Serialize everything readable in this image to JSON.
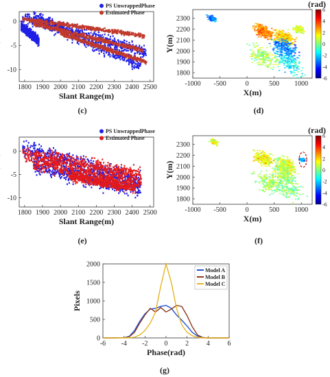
{
  "chart_data": [
    {
      "id": "c",
      "type": "scatter",
      "caption": "(c)",
      "xlabel": "Slant Range(m)",
      "ylabel": "Phase(rad)",
      "xlim": [
        1770,
        2520
      ],
      "ylim": [
        -12.5,
        2
      ],
      "xticks": [
        1800,
        1900,
        2000,
        2100,
        2200,
        2300,
        2400,
        2500
      ],
      "yticks": [
        0,
        -5,
        -10
      ],
      "legend_position": "top-right",
      "series": [
        {
          "name": "PS UnwrappedPhase",
          "color": "#1f1fe6",
          "bands": [
            [
              1790,
              1.0,
              2480,
              -6.5,
              1.0
            ],
            [
              1850,
              0.8,
              2450,
              -9.0,
              1.2
            ],
            [
              1780,
              -1.0,
              1880,
              -4.0,
              0.8
            ]
          ]
        },
        {
          "name": "Estimated Phase",
          "color": "#c0392b",
          "bands": [
            [
              1790,
              0.5,
              2470,
              -3.0,
              0.35
            ],
            [
              1850,
              -0.5,
              2460,
              -6.0,
              0.35
            ],
            [
              2000,
              -2.5,
              2480,
              -8.5,
              0.35
            ]
          ]
        }
      ]
    },
    {
      "id": "d",
      "type": "heatmap",
      "caption": "(d)",
      "xlabel": "X(m)",
      "ylabel": "Y(m)",
      "xlim": [
        -1000,
        1200
      ],
      "ylim": [
        1750,
        2380
      ],
      "xticks": [
        -1000,
        -500,
        0,
        500,
        1000
      ],
      "yticks": [
        1800,
        1900,
        2000,
        2100,
        2200,
        2300
      ],
      "colorbar": {
        "label": "(rad)",
        "range": [
          -6,
          6
        ],
        "ticks": [
          6,
          4,
          2,
          0,
          -2,
          -4,
          -6
        ]
      },
      "clusters": [
        {
          "x": -650,
          "y": 2300,
          "value": -3.0,
          "spread": 60,
          "n": 30
        },
        {
          "x": 300,
          "y": 2180,
          "value": 3.0,
          "spread": 130,
          "n": 90
        },
        {
          "x": 700,
          "y": 2120,
          "value": 2.0,
          "spread": 150,
          "n": 90
        },
        {
          "x": 700,
          "y": 2020,
          "value": -3.0,
          "spread": 180,
          "n": 70
        },
        {
          "x": 300,
          "y": 1950,
          "value": 0.5,
          "spread": 200,
          "n": 60
        },
        {
          "x": 800,
          "y": 1880,
          "value": -1.5,
          "spread": 200,
          "n": 50
        },
        {
          "x": 950,
          "y": 2200,
          "value": 1.0,
          "spread": 80,
          "n": 30
        }
      ]
    },
    {
      "id": "e",
      "type": "scatter",
      "caption": "(e)",
      "xlabel": "Slant Range(m)",
      "ylabel": "Phase(rad)",
      "xlim": [
        1770,
        2520
      ],
      "ylim": [
        -12,
        3
      ],
      "xticks": [
        1800,
        1900,
        2000,
        2100,
        2200,
        2300,
        2400,
        2500
      ],
      "yticks": [
        0,
        -5,
        -10
      ],
      "legend_position": "top-right",
      "series": [
        {
          "name": "PS UnwrappedPhase",
          "color": "#1f1fe6",
          "bands": [
            [
              1790,
              0.5,
              2450,
              -6.5,
              1.5
            ],
            [
              1850,
              -3.0,
              2450,
              -8.5,
              1.5
            ]
          ]
        },
        {
          "name": "Estimated Phase",
          "color": "#e31a1c",
          "bands": [
            [
              1790,
              -0.5,
              2450,
              -5.0,
              1.2
            ],
            [
              1850,
              -2.5,
              2450,
              -7.0,
              1.2
            ],
            [
              2050,
              -5.5,
              2420,
              -8.0,
              0.8
            ]
          ]
        }
      ]
    },
    {
      "id": "f",
      "type": "heatmap",
      "caption": "(f)",
      "xlabel": "X(m)",
      "ylabel": "Y(m)",
      "xlim": [
        -1000,
        1200
      ],
      "ylim": [
        1750,
        2380
      ],
      "xticks": [
        -1000,
        -500,
        0,
        500,
        1000
      ],
      "yticks": [
        1800,
        1900,
        2000,
        2100,
        2200,
        2300
      ],
      "colorbar": {
        "label": "(rad)",
        "range": [
          -6,
          6
        ],
        "ticks": [
          6,
          4,
          2,
          0,
          -2,
          -4,
          -6
        ]
      },
      "highlight": {
        "x": 1030,
        "y": 2160,
        "rx": 70,
        "ry": 70
      },
      "clusters": [
        {
          "x": -600,
          "y": 2320,
          "value": 1.0,
          "spread": 60,
          "n": 25
        },
        {
          "x": 300,
          "y": 2170,
          "value": 1.5,
          "spread": 140,
          "n": 80
        },
        {
          "x": 700,
          "y": 2110,
          "value": 1.0,
          "spread": 150,
          "n": 80
        },
        {
          "x": 700,
          "y": 2020,
          "value": 0.5,
          "spread": 180,
          "n": 60
        },
        {
          "x": 400,
          "y": 1950,
          "value": 0.5,
          "spread": 220,
          "n": 60
        },
        {
          "x": 800,
          "y": 1880,
          "value": 0.0,
          "spread": 200,
          "n": 40
        },
        {
          "x": 1020,
          "y": 2160,
          "value": -2.5,
          "spread": 40,
          "n": 15
        }
      ]
    },
    {
      "id": "g",
      "type": "line",
      "caption": "(g)",
      "xlabel": "Phase(rad)",
      "ylabel": "Pixels",
      "xlim": [
        -6,
        6
      ],
      "ylim": [
        0,
        2000
      ],
      "xticks": [
        -6,
        -4,
        -2,
        0,
        2,
        4,
        6
      ],
      "yticks": [
        0,
        500,
        1000,
        1500,
        2000
      ],
      "legend_position": "top-right",
      "x": [
        -6,
        -5,
        -4,
        -3.5,
        -3,
        -2.5,
        -2,
        -1.5,
        -1,
        -0.5,
        0,
        0.5,
        1,
        1.5,
        2,
        2.5,
        3,
        3.5,
        4,
        5,
        6
      ],
      "series": [
        {
          "name": "Model A",
          "color": "#1f4fd6",
          "values": [
            0,
            0,
            5,
            40,
            200,
            450,
            650,
            780,
            800,
            850,
            880,
            800,
            620,
            480,
            320,
            150,
            50,
            10,
            0,
            0,
            0
          ]
        },
        {
          "name": "Model B",
          "color": "#8b3a1a",
          "values": [
            0,
            0,
            5,
            30,
            150,
            400,
            620,
            800,
            700,
            820,
            700,
            780,
            880,
            850,
            600,
            300,
            80,
            10,
            0,
            0,
            0
          ]
        },
        {
          "name": "Model C",
          "color": "#e6b422",
          "values": [
            0,
            0,
            0,
            5,
            20,
            80,
            200,
            400,
            700,
            1400,
            2000,
            1500,
            800,
            350,
            150,
            60,
            15,
            0,
            0,
            0,
            0
          ]
        }
      ]
    }
  ]
}
